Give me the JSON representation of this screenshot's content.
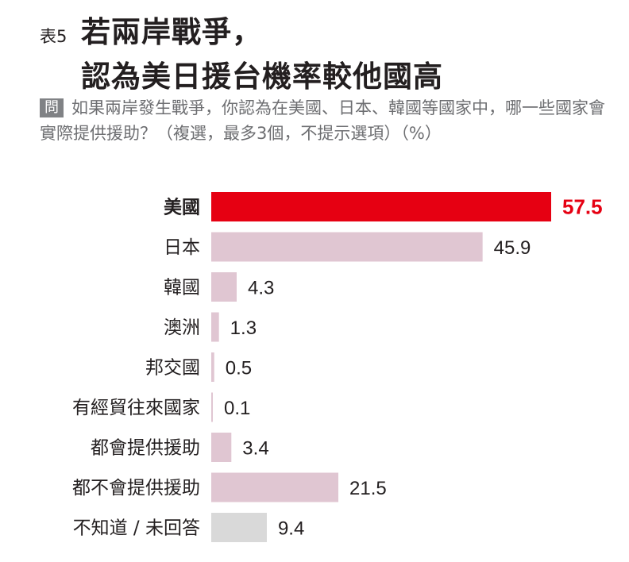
{
  "header": {
    "table_no": "表5",
    "title_line1": "若兩岸戰爭，",
    "title_line2": "認為美日援台機率較他國高",
    "question_badge": "問",
    "question_text": "如果兩岸發生戰爭，你認為在美國、日本、韓國等國家中，哪一些國家會實際提供援助？（複選，最多3個，不提示選項）（%）"
  },
  "chart_data": {
    "type": "bar",
    "orientation": "horizontal",
    "categories": [
      "美國",
      "日本",
      "韓國",
      "澳洲",
      "邦交國",
      "有經貿往來國家",
      "都會提供援助",
      "都不會提供援助",
      "不知道 / 未回答"
    ],
    "values": [
      57.5,
      45.9,
      4.3,
      1.3,
      0.5,
      0.1,
      3.4,
      21.5,
      9.4
    ],
    "value_labels": [
      "57.5",
      "45.9",
      "4.3",
      "1.3",
      "0.5",
      "0.1",
      "3.4",
      "21.5",
      "9.4"
    ],
    "highlight_index": 0,
    "colors": {
      "highlight": "#e60012",
      "default": "#e0c6d2",
      "unknown": "#d9d9d9",
      "highlight_text": "#e60012",
      "text": "#231f20"
    },
    "bar_color_keys": [
      "highlight",
      "default",
      "default",
      "default",
      "default",
      "default",
      "default",
      "default",
      "unknown"
    ],
    "title": "",
    "xlabel": "",
    "ylabel": "",
    "xlim": [
      0,
      57.5
    ],
    "grid": false,
    "legend": "none"
  }
}
